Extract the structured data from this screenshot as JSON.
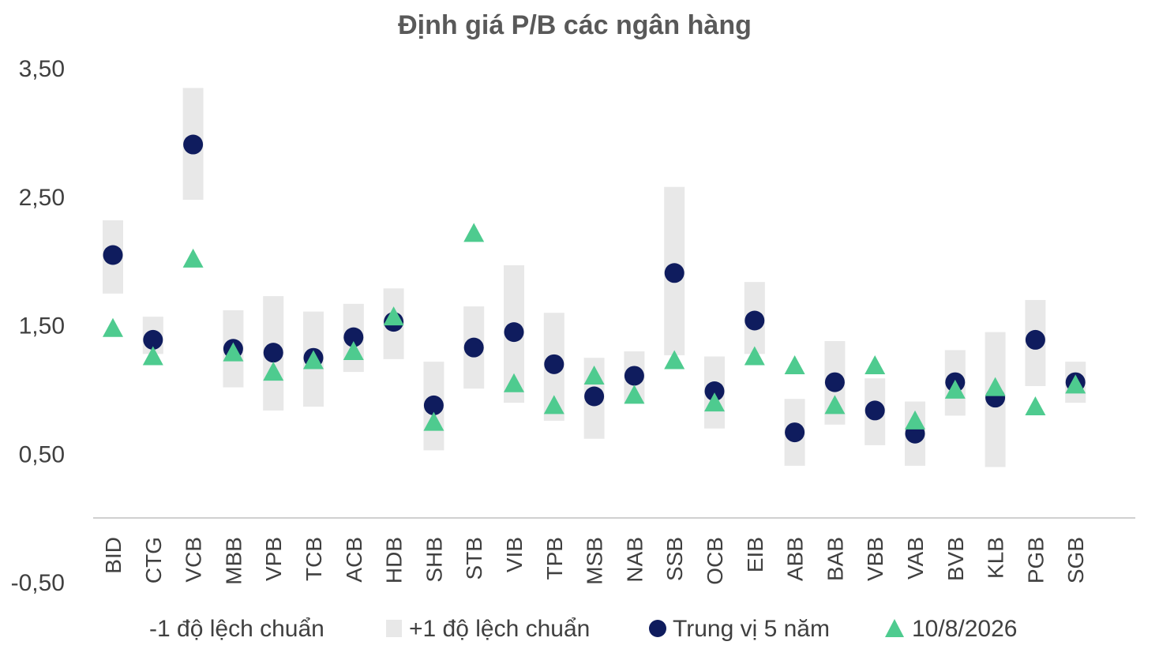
{
  "chart_data": {
    "type": "scatter",
    "title": "Định giá P/B các ngân hàng",
    "ylim": [
      -0.5,
      3.5
    ],
    "yticks": [
      "3,50",
      "2,50",
      "1,50",
      "0,50",
      "-0,50"
    ],
    "ytick_values": [
      3.5,
      2.5,
      1.5,
      0.5,
      -0.5
    ],
    "grid": false,
    "legend_position": "bottom",
    "categories": [
      "BID",
      "CTG",
      "VCB",
      "MBB",
      "VPB",
      "TCB",
      "ACB",
      "HDB",
      "SHB",
      "STB",
      "VIB",
      "TPB",
      "MSB",
      "NAB",
      "SSB",
      "OCB",
      "EIB",
      "ABB",
      "BAB",
      "VBB",
      "VAB",
      "BVB",
      "KLB",
      "PGB",
      "SGB"
    ],
    "series": [
      {
        "name": "-1 độ lệch chuẩn",
        "values": [
          1.75,
          1.28,
          2.48,
          1.02,
          0.84,
          0.87,
          1.14,
          1.24,
          0.53,
          1.01,
          0.9,
          0.76,
          0.62,
          0.9,
          1.27,
          0.7,
          1.28,
          0.41,
          0.73,
          0.57,
          0.41,
          0.8,
          0.4,
          1.03,
          0.9
        ]
      },
      {
        "name": "+1 độ lệch chuẩn",
        "values": [
          2.32,
          1.57,
          3.35,
          1.62,
          1.73,
          1.61,
          1.67,
          1.79,
          1.22,
          1.65,
          1.97,
          1.6,
          1.25,
          1.3,
          2.58,
          1.26,
          1.84,
          0.93,
          1.38,
          1.09,
          0.91,
          1.31,
          1.45,
          1.7,
          1.22
        ]
      },
      {
        "name": "Trung vị 5 năm",
        "color": "#0f1c5e",
        "values": [
          2.05,
          1.39,
          2.91,
          1.32,
          1.29,
          1.25,
          1.41,
          1.53,
          0.88,
          1.33,
          1.45,
          1.2,
          0.95,
          1.11,
          1.91,
          0.99,
          1.54,
          0.67,
          1.06,
          0.84,
          0.66,
          1.06,
          0.94,
          1.39,
          1.06
        ]
      },
      {
        "name": "10/8/2026",
        "color": "#4ecb8f",
        "values": [
          1.48,
          1.26,
          2.02,
          1.29,
          1.14,
          1.23,
          1.3,
          1.57,
          0.75,
          2.22,
          1.05,
          0.88,
          1.11,
          0.96,
          1.23,
          0.9,
          1.26,
          1.19,
          0.88,
          1.19,
          0.76,
          1.0,
          1.02,
          0.87,
          1.04
        ]
      }
    ],
    "band_color": "#e8e8e8",
    "axis_color": "#d0d0d0"
  }
}
